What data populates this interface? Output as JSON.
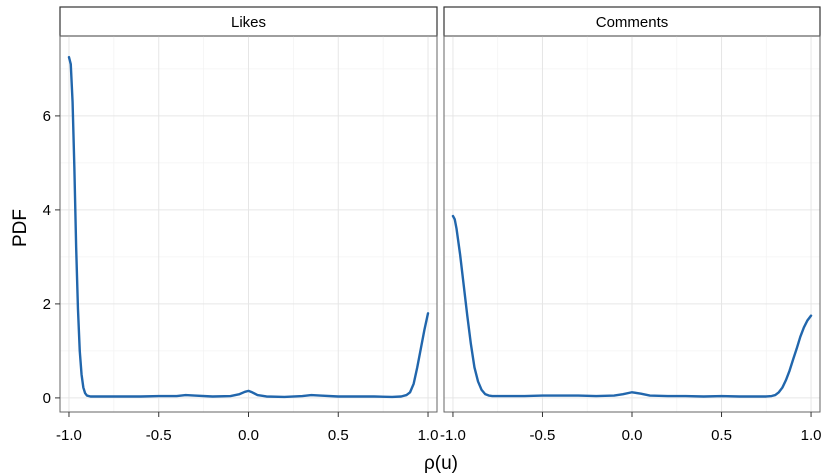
{
  "chart_data": {
    "type": "line",
    "xlabel": "ρ(u)",
    "ylabel": "PDF",
    "xlim": [
      -1.05,
      1.05
    ],
    "ylim": [
      -0.3,
      7.7
    ],
    "x_ticks": [
      "-1.0",
      "-0.5",
      "0.0",
      "0.5",
      "1.0"
    ],
    "y_ticks": [
      "0",
      "2",
      "4",
      "6"
    ],
    "grid": true,
    "line_color": "#2166ac",
    "panels": [
      {
        "label": "Likes",
        "x": [
          -1.0,
          -0.99,
          -0.98,
          -0.97,
          -0.96,
          -0.95,
          -0.94,
          -0.93,
          -0.92,
          -0.91,
          -0.9,
          -0.88,
          -0.85,
          -0.8,
          -0.7,
          -0.6,
          -0.5,
          -0.4,
          -0.35,
          -0.3,
          -0.2,
          -0.1,
          -0.05,
          -0.02,
          0.0,
          0.02,
          0.05,
          0.1,
          0.2,
          0.3,
          0.35,
          0.4,
          0.5,
          0.6,
          0.7,
          0.8,
          0.85,
          0.88,
          0.9,
          0.92,
          0.94,
          0.96,
          0.98,
          1.0
        ],
        "y": [
          7.25,
          7.1,
          6.3,
          4.9,
          3.2,
          1.9,
          1.0,
          0.5,
          0.22,
          0.1,
          0.05,
          0.03,
          0.03,
          0.03,
          0.03,
          0.03,
          0.04,
          0.04,
          0.06,
          0.05,
          0.03,
          0.04,
          0.08,
          0.13,
          0.15,
          0.12,
          0.06,
          0.03,
          0.02,
          0.04,
          0.06,
          0.05,
          0.03,
          0.03,
          0.03,
          0.02,
          0.03,
          0.06,
          0.12,
          0.3,
          0.65,
          1.05,
          1.45,
          1.8
        ]
      },
      {
        "label": "Comments",
        "x": [
          -1.0,
          -0.99,
          -0.98,
          -0.96,
          -0.94,
          -0.92,
          -0.9,
          -0.88,
          -0.86,
          -0.84,
          -0.82,
          -0.8,
          -0.78,
          -0.75,
          -0.7,
          -0.6,
          -0.5,
          -0.4,
          -0.3,
          -0.2,
          -0.1,
          -0.05,
          0.0,
          0.05,
          0.1,
          0.2,
          0.3,
          0.4,
          0.5,
          0.6,
          0.7,
          0.75,
          0.78,
          0.8,
          0.82,
          0.84,
          0.86,
          0.88,
          0.9,
          0.92,
          0.94,
          0.96,
          0.98,
          1.0
        ],
        "y": [
          3.87,
          3.8,
          3.6,
          3.05,
          2.4,
          1.75,
          1.15,
          0.65,
          0.35,
          0.17,
          0.08,
          0.05,
          0.04,
          0.04,
          0.04,
          0.04,
          0.05,
          0.05,
          0.05,
          0.04,
          0.05,
          0.08,
          0.12,
          0.09,
          0.05,
          0.04,
          0.04,
          0.03,
          0.04,
          0.03,
          0.03,
          0.03,
          0.04,
          0.06,
          0.12,
          0.22,
          0.38,
          0.58,
          0.82,
          1.05,
          1.3,
          1.5,
          1.65,
          1.75
        ]
      }
    ]
  }
}
